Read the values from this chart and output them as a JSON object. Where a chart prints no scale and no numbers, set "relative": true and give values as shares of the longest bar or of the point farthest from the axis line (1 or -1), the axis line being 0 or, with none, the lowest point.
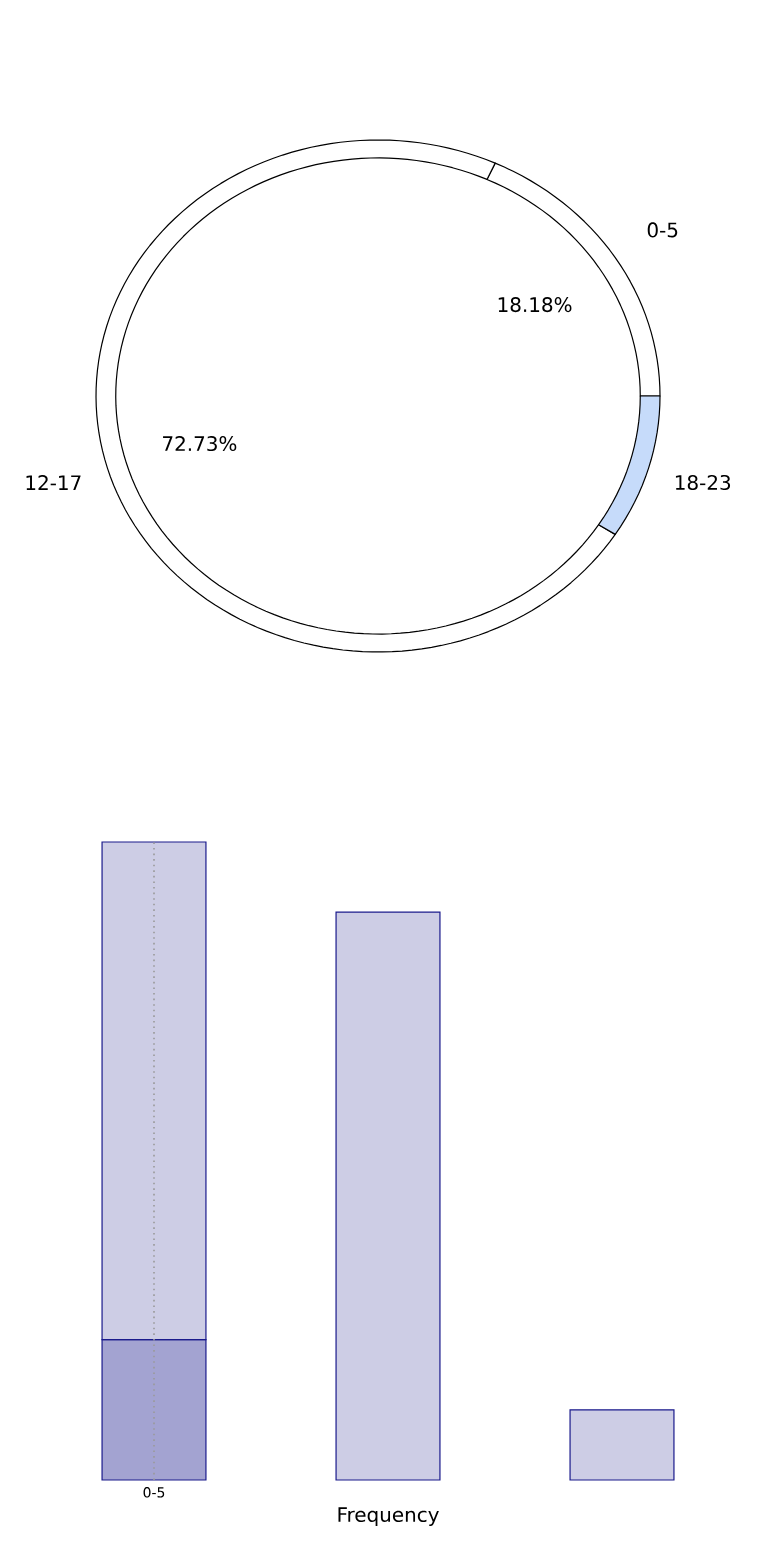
{
  "chart_data": [
    {
      "type": "donut",
      "categories": [
        "0-5",
        "12-17",
        "18-23"
      ],
      "values": [
        18.18,
        72.73,
        9.09
      ],
      "colors": [
        "#ffffff",
        "#ffffff",
        "#c6dbfa"
      ],
      "value_labels": [
        "18.18%",
        "72.73%",
        null
      ]
    },
    {
      "type": "bar",
      "categories": [
        "0-5",
        null,
        null
      ],
      "xlabel": "Frequency",
      "stacked": true,
      "relative": true,
      "series": [
        {
          "color": "#a3a3d1",
          "values": [
            0.22,
            null,
            null
          ]
        },
        {
          "color": "#cdcde5",
          "values": [
            0.78,
            0.89,
            0.11
          ]
        }
      ],
      "ref_lines": [
        {
          "axis": "x",
          "value": "0-5",
          "color": "#999999",
          "line_style": "dotted"
        }
      ]
    }
  ]
}
